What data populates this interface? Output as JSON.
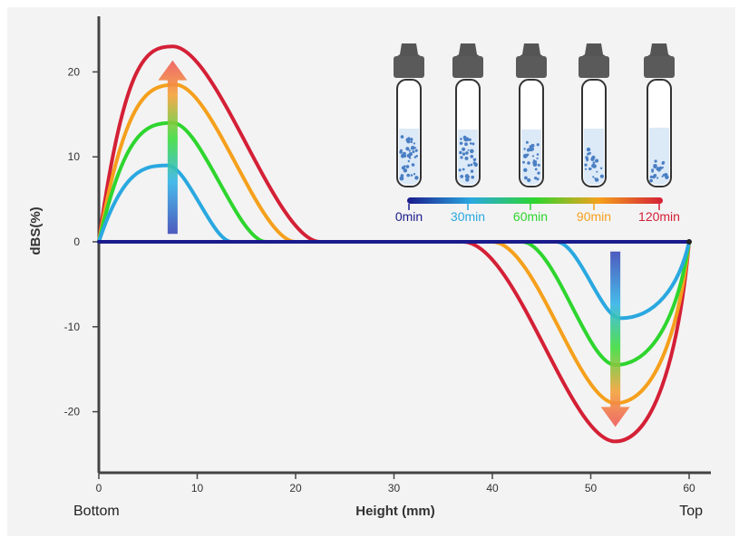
{
  "chart_data": {
    "type": "line",
    "title": "",
    "xlabel": "Height (mm)",
    "ylabel": "dBS(%)",
    "xlim": [
      0,
      60
    ],
    "ylim": [
      -27,
      27
    ],
    "xticks": [
      0,
      10,
      20,
      30,
      40,
      50,
      60
    ],
    "yticks": [
      -20,
      -10,
      0,
      10,
      20
    ],
    "x_end_labels": {
      "left": "Bottom",
      "right": "Top"
    },
    "series": [
      {
        "name": "0min",
        "color": "#1a1a8c",
        "bottom_peak": {
          "x": 0,
          "y": 0
        },
        "bottom_end_x": 0,
        "top_start_x": 60,
        "top_trough": {
          "x": 60,
          "y": 0
        }
      },
      {
        "name": "30min",
        "color": "#2aa8e0",
        "bottom_peak": {
          "x": 7,
          "y": 9
        },
        "bottom_end_x": 13.5,
        "top_start_x": 46.5,
        "top_trough": {
          "x": 53,
          "y": -9
        }
      },
      {
        "name": "60min",
        "color": "#2ed52e",
        "bottom_peak": {
          "x": 7.5,
          "y": 14
        },
        "bottom_end_x": 17,
        "top_start_x": 43,
        "top_trough": {
          "x": 52.5,
          "y": -14.5
        }
      },
      {
        "name": "90min",
        "color": "#f5a01c",
        "bottom_peak": {
          "x": 7.8,
          "y": 18.5
        },
        "bottom_end_x": 20,
        "top_start_x": 40,
        "top_trough": {
          "x": 52.5,
          "y": -19
        }
      },
      {
        "name": "120min",
        "color": "#d42036",
        "bottom_peak": {
          "x": 7.5,
          "y": 23
        },
        "bottom_end_x": 22.5,
        "top_start_x": 37,
        "top_trough": {
          "x": 52.5,
          "y": -23.5
        }
      }
    ],
    "annotations": [
      {
        "type": "arrow",
        "direction": "up",
        "at_x": 7.5,
        "from_y": 0.5,
        "to_y": 22,
        "meaning": "increasing over time"
      },
      {
        "type": "arrow",
        "direction": "down",
        "at_x": 52.5,
        "from_y": -0.5,
        "to_y": -22,
        "meaning": "increasing over time"
      }
    ],
    "inset": {
      "type": "vials",
      "time_labels": [
        "0min",
        "30min",
        "60min",
        "90min",
        "120min"
      ],
      "time_colors": [
        "#1a1a8c",
        "#2aa8e0",
        "#2ed52e",
        "#f5a01c",
        "#d42036"
      ]
    }
  }
}
